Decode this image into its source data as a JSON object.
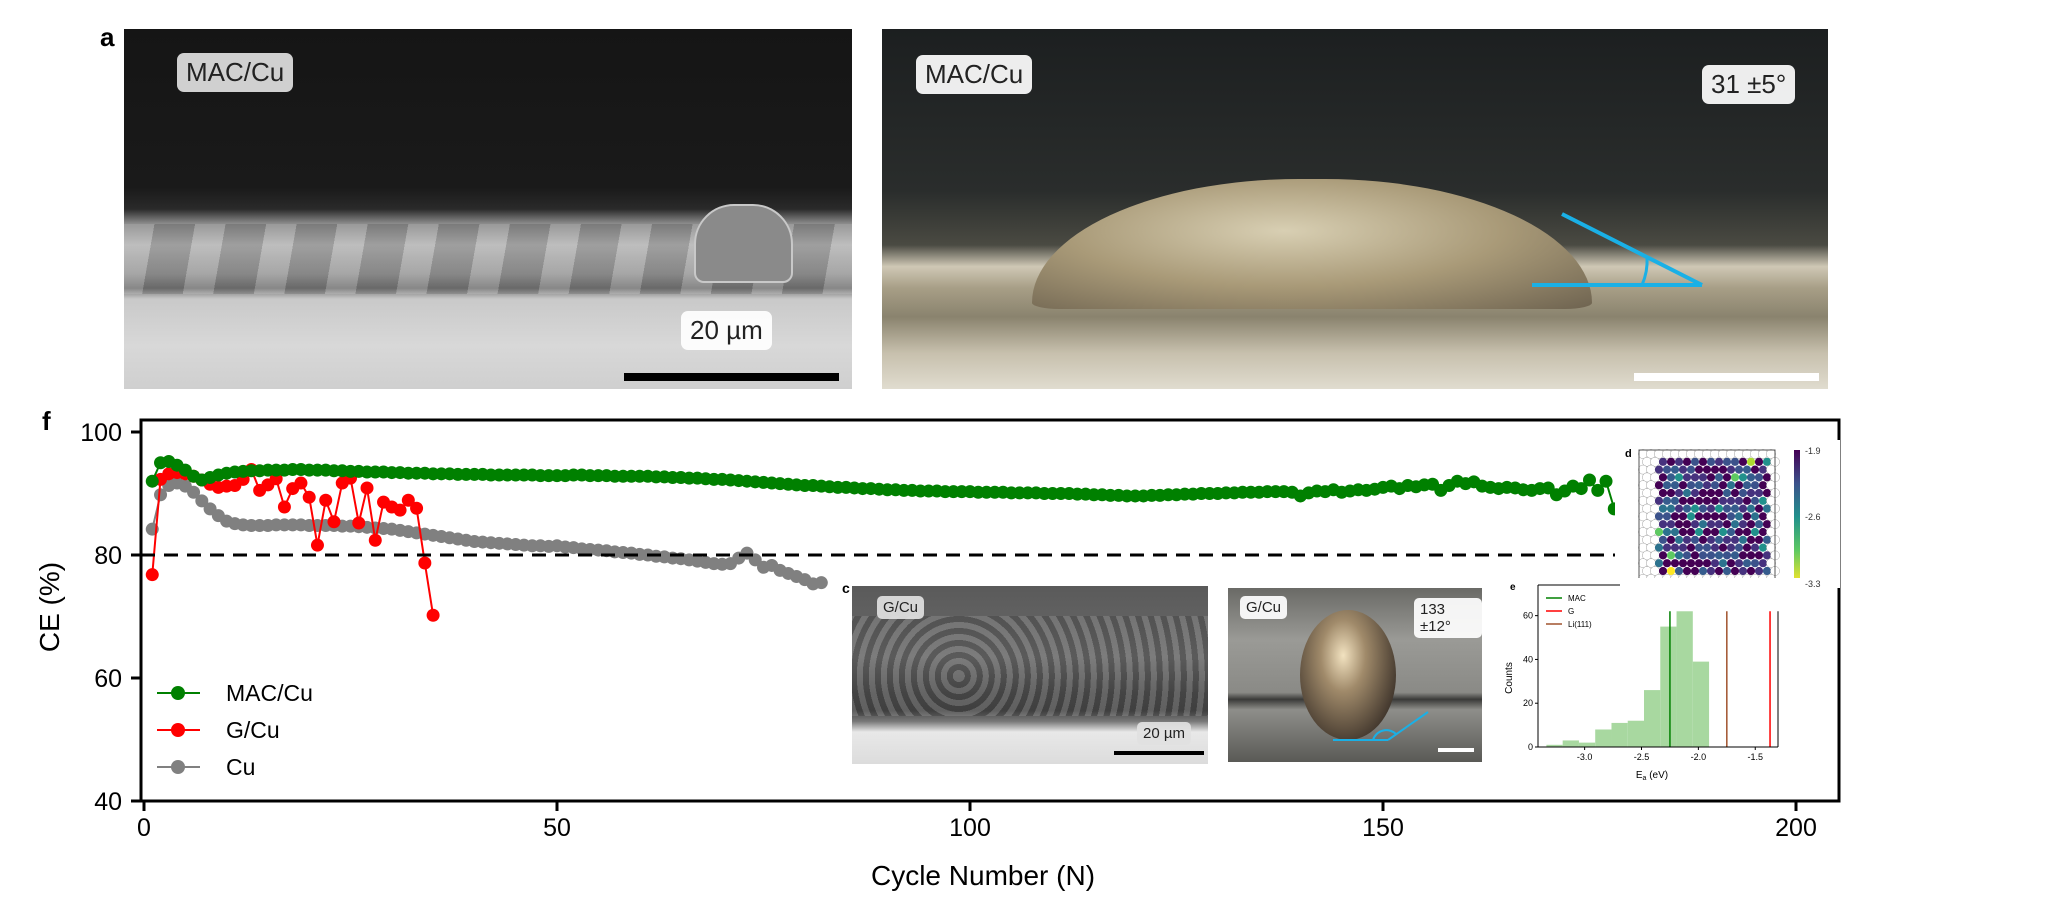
{
  "panels": {
    "a_label": "a",
    "f_label": "f",
    "c_label": "c",
    "d_label": "d",
    "e_label": "e",
    "sem_top": {
      "sample": "MAC/Cu",
      "scale": "20 µm"
    },
    "photo_top": {
      "sample": "MAC/Cu",
      "angle": "31 ±5°"
    },
    "sem_inset": {
      "sample": "G/Cu",
      "scale": "20 µm"
    },
    "photo_inset": {
      "sample": "G/Cu",
      "angle": "133 ±12°"
    }
  },
  "colors": {
    "mac": "#008000",
    "g": "#ff0000",
    "cu": "#808080",
    "contact_line": "#1ab0e6",
    "hist": "#a8d8a0",
    "li111": "#a0522d"
  },
  "chart_data": [
    {
      "type": "scatter",
      "xlabel": "Cycle Number (N)",
      "ylabel": "CE (%)",
      "xlim": [
        -1,
        205
      ],
      "ylim": [
        40,
        102
      ],
      "xticks": [
        0,
        50,
        100,
        150,
        200
      ],
      "yticks": [
        40,
        60,
        80,
        100
      ],
      "reference_line": {
        "y": 80,
        "style": "dashed"
      },
      "legend_placement": "lower-left",
      "grid": false,
      "series": [
        {
          "name": "MAC/Cu",
          "color": "#008000",
          "start_cycle": 1,
          "values": [
            92.0,
            95.0,
            95.2,
            94.6,
            93.8,
            92.8,
            92.2,
            92.6,
            93.0,
            93.3,
            93.5,
            93.6,
            93.7,
            93.7,
            93.8,
            93.8,
            93.8,
            93.9,
            93.9,
            93.8,
            93.8,
            93.8,
            93.7,
            93.7,
            93.6,
            93.6,
            93.5,
            93.5,
            93.5,
            93.4,
            93.4,
            93.3,
            93.3,
            93.3,
            93.2,
            93.2,
            93.2,
            93.1,
            93.1,
            93.1,
            93.1,
            93.0,
            93.0,
            93.0,
            93.0,
            93.0,
            93.0,
            92.9,
            92.9,
            92.9,
            92.9,
            93.0,
            93.0,
            92.9,
            92.9,
            92.9,
            92.8,
            92.8,
            92.8,
            92.8,
            92.8,
            92.7,
            92.7,
            92.6,
            92.6,
            92.5,
            92.5,
            92.4,
            92.3,
            92.3,
            92.2,
            92.1,
            92.0,
            91.9,
            91.8,
            91.7,
            91.6,
            91.5,
            91.4,
            91.3,
            91.3,
            91.2,
            91.1,
            91.0,
            91.0,
            90.9,
            90.8,
            90.8,
            90.7,
            90.6,
            90.6,
            90.5,
            90.5,
            90.4,
            90.4,
            90.4,
            90.3,
            90.3,
            90.3,
            90.3,
            90.2,
            90.2,
            90.2,
            90.2,
            90.1,
            90.1,
            90.1,
            90.1,
            90.0,
            90.0,
            90.0,
            90.0,
            89.9,
            89.9,
            89.8,
            89.8,
            89.7,
            89.7,
            89.6,
            89.6,
            89.6,
            89.7,
            89.7,
            89.8,
            89.8,
            89.9,
            89.9,
            90.0,
            90.0,
            90.0,
            90.1,
            90.1,
            90.2,
            90.2,
            90.2,
            90.3,
            90.3,
            90.3,
            90.2,
            89.6,
            90.1,
            90.4,
            90.3,
            90.6,
            90.2,
            90.4,
            90.6,
            90.5,
            90.7,
            91.0,
            91.2,
            90.8,
            91.3,
            91.1,
            91.4,
            91.5,
            90.5,
            91.3,
            92.0,
            91.6,
            91.9,
            91.2,
            91.0,
            90.8,
            91.0,
            90.9,
            90.6,
            90.5,
            90.8,
            90.9,
            89.8,
            90.4,
            91.2,
            90.8,
            92.2,
            90.5,
            92.0,
            87.5,
            88.5
          ]
        },
        {
          "name": "G/Cu",
          "color": "#ff0000",
          "start_cycle": 1,
          "values": [
            76.8,
            92.3,
            93.2,
            93.4,
            93.2,
            92.8,
            92.2,
            91.5,
            91.0,
            91.2,
            91.3,
            92.3,
            93.9,
            90.5,
            91.4,
            92.4,
            87.8,
            90.8,
            91.7,
            89.4,
            81.6,
            88.9,
            85.4,
            91.7,
            92.5,
            85.2,
            90.9,
            82.4,
            88.6,
            87.8,
            87.3,
            88.9,
            87.6,
            78.7,
            70.2
          ]
        },
        {
          "name": "Cu",
          "color": "#808080",
          "start_cycle": 1,
          "values": [
            84.2,
            89.8,
            91.3,
            91.7,
            91.2,
            90.2,
            88.8,
            87.5,
            86.4,
            85.5,
            85.1,
            84.9,
            84.8,
            84.8,
            84.8,
            84.9,
            84.9,
            84.9,
            84.9,
            84.8,
            84.8,
            84.8,
            84.8,
            84.7,
            84.7,
            84.6,
            84.5,
            84.4,
            84.3,
            84.2,
            84.0,
            83.8,
            83.6,
            83.4,
            83.2,
            83.0,
            82.8,
            82.6,
            82.4,
            82.2,
            82.1,
            82.0,
            81.9,
            81.8,
            81.7,
            81.6,
            81.5,
            81.5,
            81.4,
            81.5,
            81.3,
            81.2,
            81.0,
            80.9,
            80.8,
            80.7,
            80.5,
            80.4,
            80.3,
            80.1,
            80.0,
            79.8,
            79.7,
            79.5,
            79.4,
            79.2,
            79.0,
            78.8,
            78.6,
            78.5,
            78.6,
            79.5,
            80.3,
            79.2,
            78.0,
            78.3,
            77.5,
            77.0,
            76.5,
            76.0,
            75.3,
            75.5
          ]
        }
      ]
    },
    {
      "type": "heatmap",
      "panel": "d",
      "colorbar_ticks": [
        "-1.9",
        "-2.6",
        "-3.3"
      ],
      "colormap": "viridis"
    },
    {
      "type": "bar",
      "panel": "e",
      "xlabel": "E",
      "xlabel_sub": "a",
      "xlabel_unit": " (eV)",
      "ylabel": "Counts",
      "xlim": [
        -3.41,
        -1.3
      ],
      "ylim": [
        0,
        74
      ],
      "xticks": [
        "-3.0",
        "-2.5",
        "-2.0",
        "-1.5"
      ],
      "xtick_values": [
        -3.0,
        -2.5,
        -2.0,
        -1.5
      ],
      "yticks": [
        0,
        20,
        40,
        60
      ],
      "bin_edges": [
        -3.336,
        -3.193,
        -3.05,
        -2.907,
        -2.764,
        -2.621,
        -2.478,
        -2.335,
        -2.192,
        -2.049,
        -1.906
      ],
      "counts": [
        1,
        3,
        2,
        8,
        11,
        12,
        26,
        55,
        62,
        39
      ],
      "vlines": [
        {
          "name": "MAC",
          "x": -2.25,
          "color": "#008000"
        },
        {
          "name": "G",
          "x": -1.37,
          "color": "#ff0000"
        },
        {
          "name": "Li(111)",
          "x": -1.75,
          "color": "#a0522d"
        }
      ],
      "legend_placement": "top-left"
    }
  ]
}
